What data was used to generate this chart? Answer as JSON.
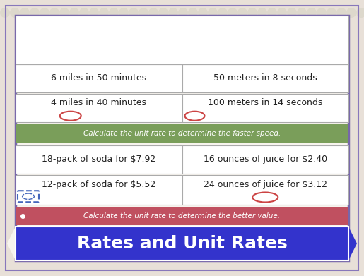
{
  "title": "Rates and Unit Rates",
  "title_bg": "#3333cc",
  "title_color": "#ffffff",
  "title_fontsize": 18,
  "section1_text": "Calculate the unit rate to determine the better value.",
  "section1_bg": "#c05060",
  "section1_color": "#ffffff",
  "section2_text": "Calculate the unit rate to determine the faster speed.",
  "section2_bg": "#7a9e5a",
  "section2_color": "#ffffff",
  "text_color": "#222222",
  "text_fontsize": 9,
  "col1_row1": "12-pack of soda for $5.52",
  "col1_row2": "18-pack of soda for $7.92",
  "col2_row1": "24 ounces of juice for $3.12",
  "col2_row2": "16 ounces of juice for $2.40",
  "col1_row3": "4 miles in 40 minutes",
  "col1_row4": "6 miles in 50 minutes",
  "col2_row3": "100 meters in 14 seconds",
  "col2_row4": "50 meters in 8 seconds",
  "oval_color_blue": "#4466bb",
  "oval_color_red": "#cc4444",
  "bg_outer": "#e8e0d8",
  "bg_inner": "#f7f4ee",
  "border_inner": "#7766aa",
  "border_outer": "#8877bb",
  "cell_line_color": "#aaaaaa",
  "divider_color": "#888888"
}
